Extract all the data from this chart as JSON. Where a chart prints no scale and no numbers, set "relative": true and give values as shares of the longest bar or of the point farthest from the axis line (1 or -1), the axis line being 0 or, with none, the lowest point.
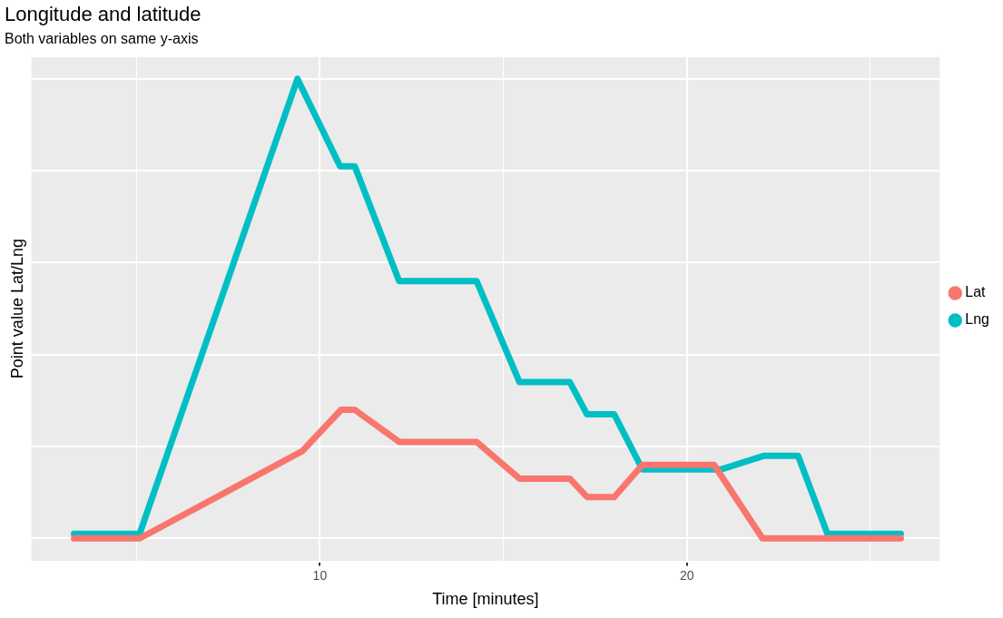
{
  "chart_data": {
    "type": "line",
    "title": "Longitude and latitude",
    "subtitle": "Both variables on same y-axis",
    "xlabel": "Time [minutes]",
    "ylabel": "Point value Lat/Lng",
    "relative": true,
    "xlim": [
      2.14,
      26.89
    ],
    "xticks": [
      {
        "value": 5,
        "label": null
      },
      10,
      {
        "value": 15,
        "label": null
      },
      20,
      {
        "value": 25,
        "label": null
      }
    ],
    "grid": true,
    "legend": "right",
    "line_style": "solid",
    "series": [
      {
        "name": "Lat",
        "color": "#f8766d",
        "x": [
          3.3,
          5.09,
          9.52,
          10.58,
          10.95,
          12.16,
          14.27,
          15.44,
          16.81,
          17.28,
          18.02,
          18.79,
          20.74,
          22.06,
          25.83
        ],
        "values": [
          0,
          0,
          0.19,
          0.28,
          0.28,
          0.21,
          0.21,
          0.13,
          0.13,
          0.09,
          0.09,
          0.16,
          0.16,
          0,
          0
        ]
      },
      {
        "name": "Lng",
        "color": "#00bfc4",
        "x": [
          3.3,
          5.09,
          9.39,
          10.55,
          10.95,
          12.16,
          14.27,
          15.44,
          16.81,
          17.28,
          18.02,
          18.79,
          20.92,
          22.11,
          23.03,
          23.83,
          25.83
        ],
        "values": [
          0.01,
          0.01,
          1,
          0.81,
          0.81,
          0.56,
          0.56,
          0.34,
          0.34,
          0.27,
          0.27,
          0.15,
          0.15,
          0.18,
          0.18,
          0.01,
          0.01
        ]
      }
    ]
  }
}
